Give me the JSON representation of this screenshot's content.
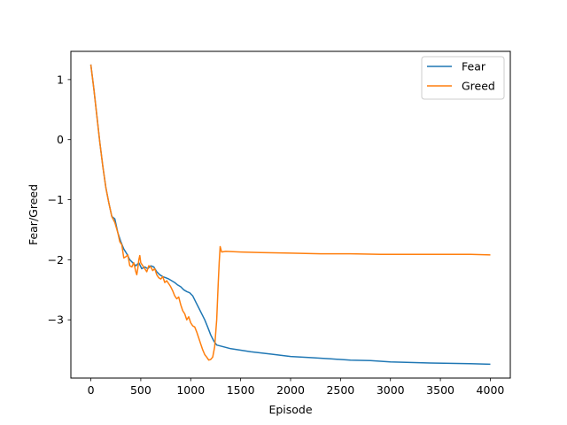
{
  "chart_data": {
    "type": "line",
    "title": "",
    "xlabel": "Episode",
    "ylabel": "Fear/Greed",
    "xlim": [
      -200,
      4200
    ],
    "ylim": [
      -3.97,
      1.47
    ],
    "xticks": [
      0,
      500,
      1000,
      1500,
      2000,
      2500,
      3000,
      3500,
      4000
    ],
    "xtick_labels": [
      "0",
      "500",
      "1000",
      "1500",
      "2000",
      "2500",
      "3000",
      "3500",
      "4000"
    ],
    "yticks": [
      1,
      0,
      -1,
      -2,
      -3
    ],
    "ytick_labels": [
      "1",
      "0",
      "−1",
      "−2",
      "−3"
    ],
    "grid": false,
    "legend_position": "top-right",
    "series": [
      {
        "name": "Fear",
        "color": "#1f77b4",
        "x": [
          0,
          30,
          60,
          90,
          120,
          150,
          180,
          210,
          240,
          270,
          300,
          330,
          360,
          390,
          420,
          450,
          480,
          510,
          540,
          570,
          600,
          630,
          660,
          690,
          720,
          750,
          780,
          810,
          840,
          870,
          900,
          930,
          960,
          990,
          1020,
          1050,
          1080,
          1110,
          1140,
          1170,
          1200,
          1230,
          1260,
          1400,
          1600,
          1800,
          2000,
          2200,
          2400,
          2600,
          2800,
          3000,
          3200,
          3400,
          3600,
          3800,
          4000
        ],
        "y": [
          1.25,
          0.85,
          0.4,
          -0.05,
          -0.45,
          -0.8,
          -1.05,
          -1.28,
          -1.32,
          -1.55,
          -1.7,
          -1.82,
          -1.9,
          -2.0,
          -2.05,
          -2.1,
          -2.05,
          -2.15,
          -2.12,
          -2.15,
          -2.1,
          -2.12,
          -2.2,
          -2.25,
          -2.28,
          -2.3,
          -2.32,
          -2.35,
          -2.38,
          -2.42,
          -2.45,
          -2.5,
          -2.53,
          -2.55,
          -2.6,
          -2.7,
          -2.8,
          -2.9,
          -3.0,
          -3.12,
          -3.25,
          -3.35,
          -3.42,
          -3.48,
          -3.53,
          -3.57,
          -3.61,
          -3.63,
          -3.65,
          -3.67,
          -3.68,
          -3.7,
          -3.71,
          -3.72,
          -3.725,
          -3.73,
          -3.74
        ]
      },
      {
        "name": "Greed",
        "color": "#ff7f0e",
        "x": [
          0,
          30,
          60,
          90,
          120,
          150,
          180,
          210,
          240,
          270,
          290,
          310,
          330,
          350,
          370,
          390,
          410,
          430,
          450,
          460,
          470,
          480,
          490,
          500,
          520,
          540,
          560,
          580,
          600,
          620,
          640,
          660,
          680,
          700,
          720,
          740,
          760,
          780,
          800,
          820,
          840,
          860,
          880,
          900,
          920,
          940,
          960,
          980,
          1000,
          1020,
          1040,
          1060,
          1080,
          1100,
          1120,
          1140,
          1160,
          1180,
          1200,
          1220,
          1240,
          1260,
          1275,
          1285,
          1295,
          1310,
          1350,
          1500,
          1700,
          2000,
          2300,
          2600,
          2900,
          3200,
          3500,
          3800,
          4000
        ],
        "y": [
          1.25,
          0.85,
          0.4,
          -0.05,
          -0.45,
          -0.8,
          -1.05,
          -1.28,
          -1.38,
          -1.55,
          -1.7,
          -1.75,
          -1.97,
          -1.95,
          -1.92,
          -2.1,
          -2.12,
          -2.05,
          -2.2,
          -2.25,
          -2.15,
          -2.0,
          -1.93,
          -2.05,
          -2.1,
          -2.15,
          -2.2,
          -2.1,
          -2.12,
          -2.18,
          -2.15,
          -2.25,
          -2.3,
          -2.32,
          -2.28,
          -2.38,
          -2.35,
          -2.4,
          -2.45,
          -2.52,
          -2.6,
          -2.65,
          -2.62,
          -2.75,
          -2.85,
          -2.9,
          -3.0,
          -2.95,
          -3.05,
          -3.1,
          -3.12,
          -3.2,
          -3.3,
          -3.4,
          -3.5,
          -3.58,
          -3.62,
          -3.67,
          -3.66,
          -3.62,
          -3.45,
          -3.0,
          -2.4,
          -2.05,
          -1.78,
          -1.87,
          -1.86,
          -1.87,
          -1.88,
          -1.89,
          -1.9,
          -1.9,
          -1.91,
          -1.91,
          -1.91,
          -1.91,
          -1.92
        ]
      }
    ]
  }
}
